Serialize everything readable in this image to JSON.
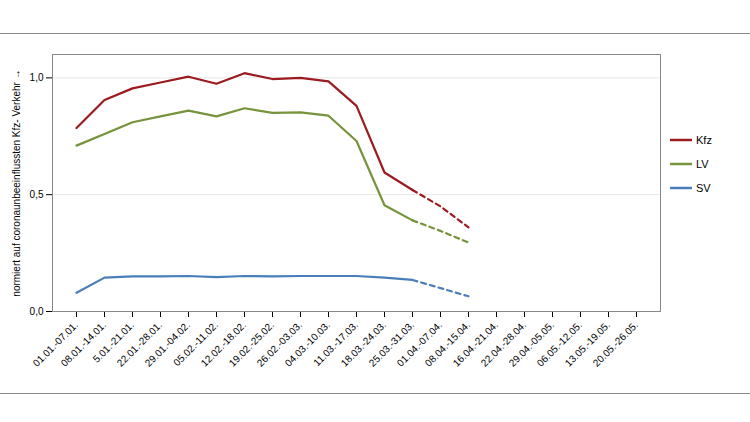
{
  "chart_data": {
    "type": "line",
    "y_label": "normiert auf coronaunbeeinflussten Kfz- Verkehr",
    "categories": [
      "01.01.-07.01.",
      "08.01.-14.01.",
      "5.01.-21.01.",
      "22.01.-28.01.",
      "29.01.-04.02.",
      "05.02.-11.02.",
      "12.02.-18.02.",
      "19.02.-25.02.",
      "26.02.-03.03.",
      "04.03.-10.03.",
      "11.03.-17.03.",
      "18.03.-24.03.",
      "25.03.-31.03.",
      "01.04.-07.04.",
      "08.04.-15.04.",
      "16.04.-21.04.",
      "22.04.-28.04.",
      "29.04.-05.05.",
      "06.05.-12.05.",
      "13.05.-19.05.",
      "20.05.-26.05."
    ],
    "series": [
      {
        "name": "Kfz",
        "color": "#9b1b1e",
        "line_style": "solid",
        "values": [
          0.785,
          0.905,
          0.955,
          0.98,
          1.005,
          0.975,
          1.02,
          0.995,
          1.0,
          0.985,
          0.88,
          0.595,
          0.52,
          null,
          null,
          null,
          null,
          null,
          null,
          null,
          null
        ]
      },
      {
        "name": "Kfz",
        "color": "#9b1b1e",
        "line_style": "dashed",
        "values": [
          null,
          null,
          null,
          null,
          null,
          null,
          null,
          null,
          null,
          null,
          null,
          null,
          0.52,
          0.45,
          0.36,
          null,
          null,
          null,
          null,
          null,
          null
        ]
      },
      {
        "name": "LV",
        "color": "#77933c",
        "line_style": "solid",
        "values": [
          0.71,
          0.76,
          0.81,
          0.835,
          0.86,
          0.835,
          0.87,
          0.85,
          0.852,
          0.838,
          0.73,
          0.455,
          0.39,
          null,
          null,
          null,
          null,
          null,
          null,
          null,
          null
        ]
      },
      {
        "name": "LV",
        "color": "#77933c",
        "line_style": "dashed",
        "values": [
          null,
          null,
          null,
          null,
          null,
          null,
          null,
          null,
          null,
          null,
          null,
          null,
          0.39,
          0.345,
          0.295,
          null,
          null,
          null,
          null,
          null,
          null
        ]
      },
      {
        "name": "SV",
        "color": "#4a7ebb",
        "line_style": "solid",
        "values": [
          0.08,
          0.145,
          0.15,
          0.15,
          0.152,
          0.147,
          0.152,
          0.15,
          0.152,
          0.152,
          0.152,
          0.145,
          0.135,
          null,
          null,
          null,
          null,
          null,
          null,
          null,
          null
        ]
      },
      {
        "name": "SV",
        "color": "#4a7ebb",
        "line_style": "dashed",
        "values": [
          null,
          null,
          null,
          null,
          null,
          null,
          null,
          null,
          null,
          null,
          null,
          null,
          0.135,
          0.1,
          0.065,
          null,
          null,
          null,
          null,
          null,
          null
        ]
      }
    ],
    "ylim": [
      0,
      1.1
    ],
    "yticks": [
      {
        "value": 0,
        "label": "0,0"
      },
      {
        "value": 0.5,
        "label": "0,5"
      },
      {
        "value": 1,
        "label": "1,0"
      }
    ],
    "grid": true,
    "legend": "right"
  }
}
